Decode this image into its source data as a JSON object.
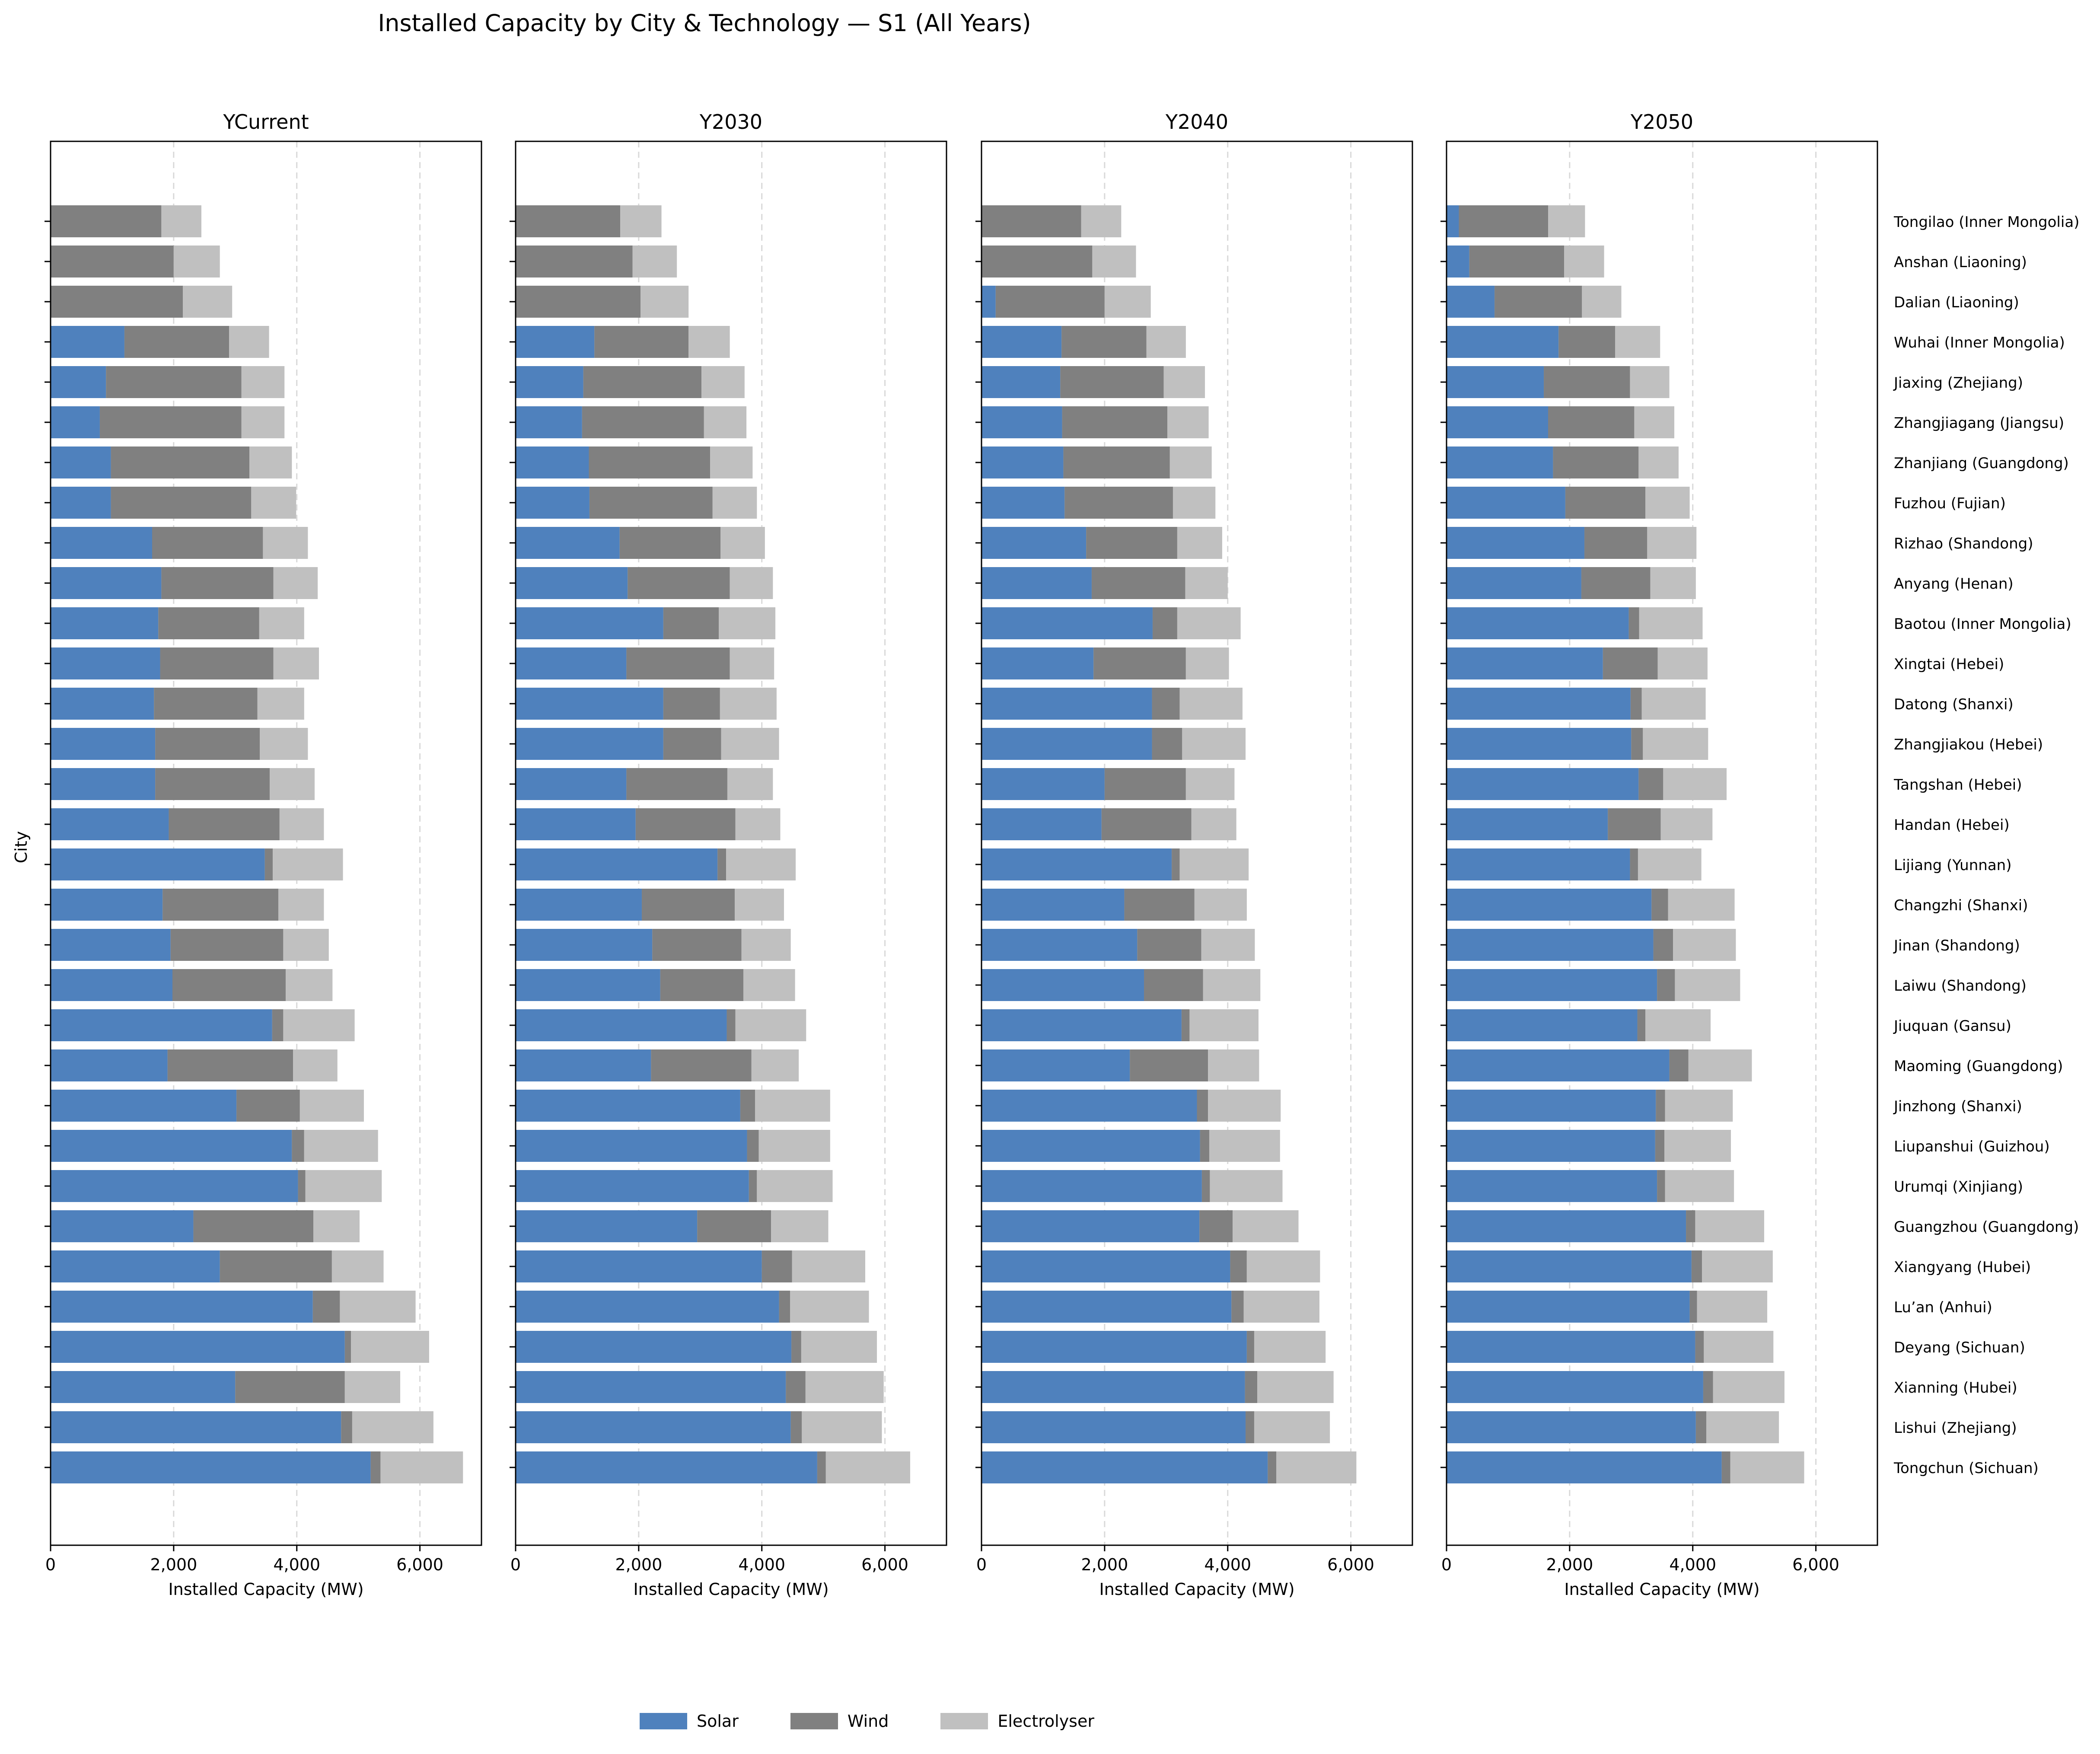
{
  "chart_data": {
    "type": "bar",
    "orientation": "horizontal",
    "stacked": true,
    "title": "Installed Capacity by City & Technology — S1 (All Years)",
    "ylabel": "City",
    "xlabel": "Installed Capacity (MW)",
    "xlim": [
      0,
      7000
    ],
    "xticks": [
      0,
      2000,
      4000,
      6000
    ],
    "xtick_labels": [
      "0",
      "2,000",
      "4,000",
      "6,000"
    ],
    "grid": "x dashed",
    "legend_position": "bottom-center",
    "colors": {
      "Solar": "#4f81bd",
      "Wind": "#808080",
      "Electrolyser": "#c0c0c0"
    },
    "series_names": [
      "Solar",
      "Wind",
      "Electrolyser"
    ],
    "categories": [
      "Tongilao (Inner Mongolia)",
      "Anshan (Liaoning)",
      "Dalian (Liaoning)",
      "Wuhai (Inner Mongolia)",
      "Jiaxing (Zhejiang)",
      "Zhangjiagang (Jiangsu)",
      "Zhanjiang (Guangdong)",
      "Fuzhou (Fujian)",
      "Rizhao (Shandong)",
      "Anyang (Henan)",
      "Baotou (Inner Mongolia)",
      "Xingtai (Hebei)",
      "Datong (Shanxi)",
      "Zhangjiakou (Hebei)",
      "Tangshan (Hebei)",
      "Handan (Hebei)",
      "Lijiang (Yunnan)",
      "Changzhi (Shanxi)",
      "Jinan (Shandong)",
      "Laiwu (Shandong)",
      "Jiuquan (Gansu)",
      "Maoming (Guangdong)",
      "Jinzhong (Shanxi)",
      "Liupanshui (Guizhou)",
      "Urumqi (Xinjiang)",
      "Guangzhou (Guangdong)",
      "Xiangyang (Hubei)",
      "Lu’an (Anhui)",
      "Deyang (Sichuan)",
      "Xianning (Hubei)",
      "Lishui (Zhejiang)",
      "Tongchun (Sichuan)"
    ],
    "panels": [
      {
        "name": "YCurrent",
        "solar": [
          0,
          0,
          0,
          1200,
          900,
          800,
          980,
          980,
          1650,
          1800,
          1750,
          1780,
          1680,
          1700,
          1700,
          1920,
          3480,
          1820,
          1950,
          1980,
          3600,
          1900,
          3020,
          3920,
          4020,
          2320,
          2750,
          4260,
          4780,
          3000,
          4720,
          5200
        ],
        "wind": [
          1800,
          2000,
          2150,
          1700,
          2200,
          2300,
          2250,
          2280,
          1800,
          1820,
          1640,
          1840,
          1680,
          1700,
          1860,
          1800,
          130,
          1880,
          1830,
          1840,
          180,
          2040,
          1030,
          200,
          120,
          1950,
          1820,
          440,
          100,
          1780,
          180,
          160
        ],
        "electrolyser": [
          650,
          750,
          800,
          650,
          700,
          700,
          690,
          730,
          730,
          720,
          730,
          740,
          760,
          780,
          730,
          720,
          1140,
          740,
          740,
          760,
          1160,
          720,
          1040,
          1200,
          1240,
          750,
          840,
          1230,
          1270,
          900,
          1320,
          1340
        ]
      },
      {
        "name": "Y2030",
        "solar": [
          0,
          0,
          0,
          1280,
          1100,
          1080,
          1190,
          1200,
          1690,
          1820,
          2400,
          1800,
          2400,
          2400,
          1800,
          1950,
          3280,
          2050,
          2220,
          2350,
          3430,
          2200,
          3650,
          3760,
          3790,
          2950,
          4000,
          4280,
          4480,
          4390,
          4470,
          4900
        ],
        "wind": [
          1700,
          1900,
          2030,
          1530,
          1920,
          1980,
          1970,
          2000,
          1640,
          1660,
          900,
          1680,
          920,
          940,
          1640,
          1620,
          140,
          1510,
          1450,
          1350,
          140,
          1630,
          240,
          190,
          130,
          1200,
          490,
          180,
          160,
          320,
          180,
          140
        ],
        "electrolyser": [
          670,
          720,
          780,
          670,
          700,
          690,
          690,
          720,
          720,
          700,
          920,
          720,
          920,
          940,
          740,
          730,
          1130,
          800,
          800,
          840,
          1150,
          770,
          1220,
          1160,
          1230,
          930,
          1190,
          1280,
          1230,
          1270,
          1300,
          1370
        ]
      },
      {
        "name": "Y2040",
        "solar": [
          0,
          0,
          230,
          1300,
          1280,
          1310,
          1330,
          1350,
          1700,
          1790,
          2780,
          1820,
          2770,
          2770,
          2000,
          1950,
          3090,
          2320,
          2530,
          2640,
          3250,
          2410,
          3500,
          3550,
          3580,
          3540,
          4040,
          4060,
          4310,
          4280,
          4290,
          4650
        ],
        "wind": [
          1620,
          1800,
          1770,
          1380,
          1680,
          1710,
          1730,
          1760,
          1480,
          1520,
          400,
          1500,
          450,
          490,
          1320,
          1460,
          130,
          1140,
          1040,
          960,
          130,
          1270,
          180,
          150,
          130,
          540,
          270,
          200,
          120,
          200,
          140,
          140
        ],
        "electrolyser": [
          650,
          710,
          750,
          640,
          670,
          670,
          680,
          690,
          730,
          690,
          1030,
          700,
          1020,
          1030,
          790,
          730,
          1120,
          850,
          870,
          930,
          1120,
          830,
          1180,
          1150,
          1180,
          1070,
          1190,
          1230,
          1160,
          1240,
          1230,
          1300
        ]
      },
      {
        "name": "Y2050",
        "solar": [
          200,
          370,
          780,
          1820,
          1580,
          1650,
          1730,
          1930,
          2240,
          2190,
          2960,
          2540,
          2990,
          3000,
          3120,
          2620,
          2980,
          3330,
          3360,
          3420,
          3100,
          3620,
          3400,
          3390,
          3420,
          3890,
          3980,
          3950,
          4040,
          4170,
          4050,
          4470
        ],
        "wind": [
          1450,
          1540,
          1420,
          920,
          1400,
          1400,
          1390,
          1300,
          1020,
          1120,
          170,
          890,
          180,
          190,
          400,
          860,
          130,
          270,
          320,
          290,
          130,
          310,
          150,
          150,
          130,
          150,
          170,
          120,
          140,
          160,
          170,
          140
        ],
        "electrolyser": [
          600,
          650,
          640,
          730,
          640,
          650,
          650,
          720,
          800,
          740,
          1030,
          810,
          1040,
          1060,
          1030,
          840,
          1030,
          1080,
          1020,
          1060,
          1060,
          1030,
          1100,
          1080,
          1120,
          1120,
          1150,
          1140,
          1130,
          1160,
          1180,
          1200
        ]
      }
    ]
  }
}
